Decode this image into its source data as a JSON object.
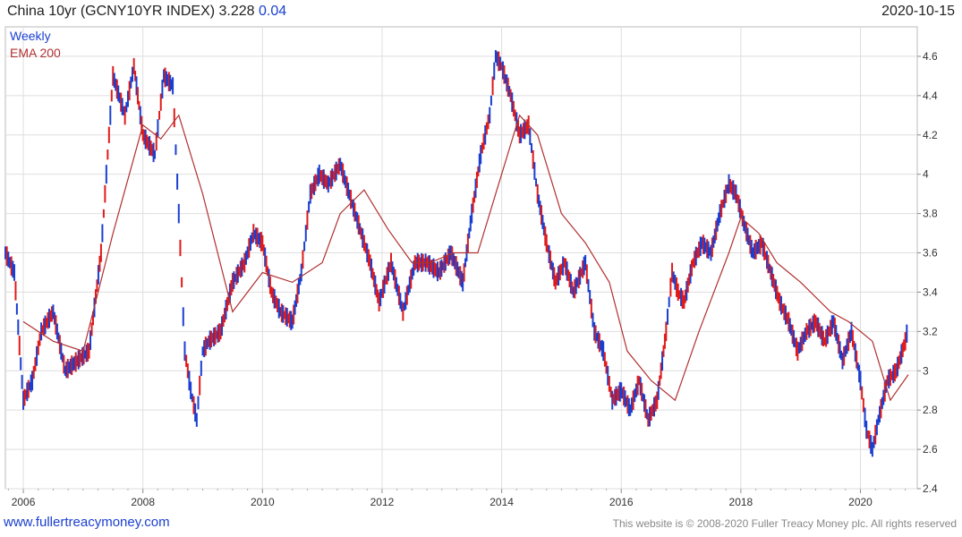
{
  "header": {
    "title": "China 10yr (GCNY10YR INDEX)",
    "last": "3.228",
    "change": "0.04",
    "date": "2020-10-15"
  },
  "footer": {
    "site": "www.fullertreacymoney.com",
    "copyright": "This website is © 2008-2020 Fuller Treacy Money plc. All rights reserved"
  },
  "chart_data": {
    "type": "line",
    "subtype": "weekly-ohlc-bars",
    "title": "China 10yr (GCNY10YR INDEX)",
    "y_axis_side": "right",
    "ylim": [
      2.4,
      4.75
    ],
    "y_ticks": [
      "2.4",
      "2.6",
      "2.8",
      "3",
      "3.2",
      "3.4",
      "3.6",
      "3.8",
      "4",
      "4.2",
      "4.4",
      "4.6"
    ],
    "xlim": [
      2005.7,
      2020.95
    ],
    "x_ticks": [
      "2006",
      "2008",
      "2010",
      "2012",
      "2014",
      "2016",
      "2018",
      "2020"
    ],
    "grid": true,
    "legend_position": "top-left",
    "legend": [
      {
        "name": "Weekly",
        "color": "#1a3fd0"
      },
      {
        "name": "EMA 200",
        "color": "#b03030"
      }
    ],
    "colors": {
      "up": "#1a3fd0",
      "down": "#e01a1a",
      "ema": "#b03030",
      "grid": "#dedede"
    },
    "series": [
      {
        "name": "Weekly",
        "x": [
          2005.7,
          2005.85,
          2006.0,
          2006.15,
          2006.3,
          2006.5,
          2006.7,
          2006.9,
          2007.1,
          2007.3,
          2007.5,
          2007.7,
          2007.85,
          2008.0,
          2008.2,
          2008.35,
          2008.5,
          2008.6,
          2008.7,
          2008.8,
          2008.9,
          2009.0,
          2009.1,
          2009.3,
          2009.5,
          2009.7,
          2009.85,
          2010.0,
          2010.15,
          2010.3,
          2010.5,
          2010.65,
          2010.8,
          2010.95,
          2011.1,
          2011.3,
          2011.5,
          2011.65,
          2011.8,
          2011.95,
          2012.15,
          2012.35,
          2012.55,
          2012.75,
          2012.95,
          2013.15,
          2013.35,
          2013.5,
          2013.65,
          2013.8,
          2013.9,
          2014.0,
          2014.15,
          2014.3,
          2014.45,
          2014.6,
          2014.75,
          2014.9,
          2015.05,
          2015.2,
          2015.4,
          2015.55,
          2015.7,
          2015.85,
          2016.0,
          2016.15,
          2016.3,
          2016.45,
          2016.6,
          2016.75,
          2016.85,
          2016.95,
          2017.05,
          2017.2,
          2017.35,
          2017.5,
          2017.65,
          2017.8,
          2017.92,
          2018.05,
          2018.2,
          2018.35,
          2018.5,
          2018.65,
          2018.8,
          2018.95,
          2019.1,
          2019.25,
          2019.4,
          2019.55,
          2019.7,
          2019.85,
          2020.0,
          2020.1,
          2020.2,
          2020.3,
          2020.45,
          2020.6,
          2020.75,
          2020.8
        ],
        "values": [
          3.6,
          3.5,
          2.85,
          2.95,
          3.2,
          3.3,
          3.0,
          3.05,
          3.1,
          3.6,
          4.5,
          4.3,
          4.55,
          4.2,
          4.1,
          4.5,
          4.45,
          3.8,
          3.1,
          2.9,
          2.75,
          3.1,
          3.15,
          3.2,
          3.45,
          3.55,
          3.7,
          3.65,
          3.4,
          3.3,
          3.25,
          3.5,
          3.9,
          4.0,
          3.95,
          4.05,
          3.85,
          3.7,
          3.55,
          3.35,
          3.55,
          3.3,
          3.55,
          3.55,
          3.5,
          3.6,
          3.45,
          3.8,
          4.1,
          4.3,
          4.6,
          4.55,
          4.4,
          4.2,
          4.25,
          3.9,
          3.65,
          3.45,
          3.55,
          3.4,
          3.55,
          3.2,
          3.1,
          2.85,
          2.9,
          2.8,
          2.95,
          2.75,
          2.85,
          3.2,
          3.5,
          3.4,
          3.35,
          3.55,
          3.65,
          3.6,
          3.8,
          3.95,
          3.9,
          3.75,
          3.6,
          3.65,
          3.5,
          3.35,
          3.25,
          3.1,
          3.2,
          3.25,
          3.15,
          3.25,
          3.05,
          3.2,
          2.95,
          2.7,
          2.6,
          2.75,
          2.95,
          3.0,
          3.15,
          3.228
        ]
      },
      {
        "name": "EMA 200",
        "x": [
          2006.0,
          2006.5,
          2007.0,
          2007.5,
          2008.0,
          2008.3,
          2008.6,
          2009.0,
          2009.5,
          2010.0,
          2010.5,
          2011.0,
          2011.3,
          2011.7,
          2012.1,
          2012.5,
          2012.8,
          2013.2,
          2013.6,
          2013.9,
          2014.3,
          2014.6,
          2015.0,
          2015.4,
          2015.8,
          2016.1,
          2016.5,
          2016.9,
          2017.3,
          2017.8,
          2018.0,
          2018.3,
          2018.6,
          2019.0,
          2019.5,
          2019.8,
          2020.2,
          2020.5,
          2020.8
        ],
        "values": [
          3.25,
          3.15,
          3.1,
          3.7,
          4.25,
          4.18,
          4.3,
          3.9,
          3.3,
          3.5,
          3.45,
          3.55,
          3.8,
          3.92,
          3.72,
          3.55,
          3.55,
          3.6,
          3.6,
          3.9,
          4.3,
          4.2,
          3.8,
          3.65,
          3.45,
          3.1,
          2.95,
          2.85,
          3.2,
          3.6,
          3.78,
          3.7,
          3.55,
          3.45,
          3.3,
          3.25,
          3.15,
          2.85,
          2.98
        ]
      }
    ]
  }
}
